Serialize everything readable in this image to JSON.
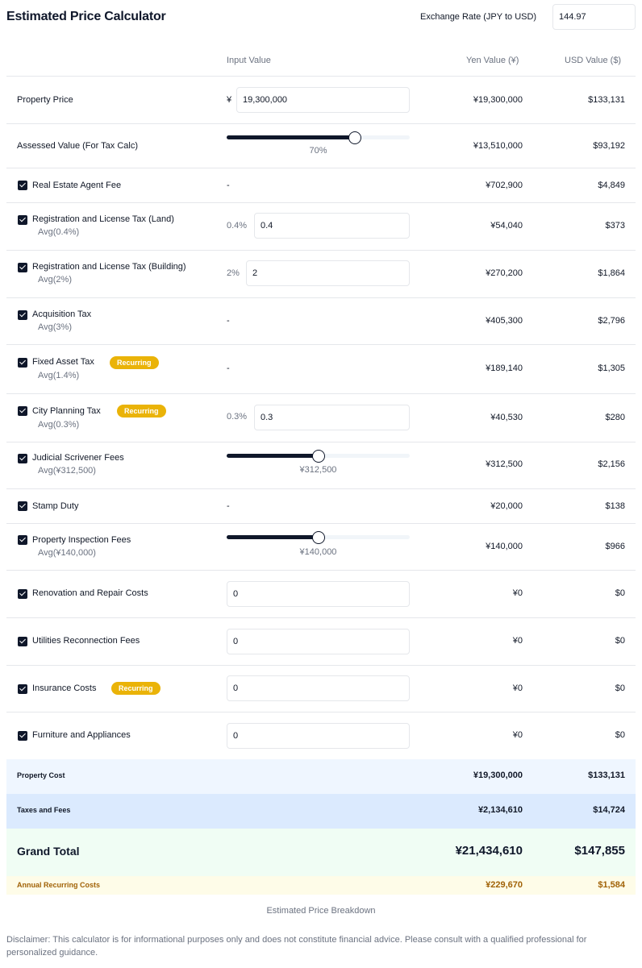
{
  "header": {
    "title": "Estimated Price Calculator",
    "exchange_rate_label": "Exchange Rate (JPY to USD)",
    "exchange_rate_value": "144.97"
  },
  "columns": {
    "input": "Input Value",
    "yen": "Yen Value (¥)",
    "usd": "USD Value ($)"
  },
  "rows": {
    "property_price": {
      "label": "Property Price",
      "prefix": "¥",
      "value": "19,300,000",
      "yen": "¥19,300,000",
      "usd": "$133,131"
    },
    "assessed_value": {
      "label": "Assessed Value (For Tax Calc)",
      "slider_percent": 70,
      "slider_label": "70%",
      "yen": "¥13,510,000",
      "usd": "$93,192"
    },
    "agent_fee": {
      "label": "Real Estate Agent Fee",
      "input": "-",
      "yen": "¥702,900",
      "usd": "$4,849",
      "checked": true
    },
    "reg_tax_land": {
      "label": "Registration and License Tax (Land)",
      "sub": "Avg(0.4%)",
      "prefix": "0.4%",
      "value": "0.4",
      "yen": "¥54,040",
      "usd": "$373",
      "checked": true
    },
    "reg_tax_building": {
      "label": "Registration and License Tax (Building)",
      "sub": "Avg(2%)",
      "prefix": "2%",
      "value": "2",
      "yen": "¥270,200",
      "usd": "$1,864",
      "checked": true
    },
    "acquisition_tax": {
      "label": "Acquisition Tax",
      "sub": "Avg(3%)",
      "input": "-",
      "yen": "¥405,300",
      "usd": "$2,796",
      "checked": true
    },
    "fixed_asset_tax": {
      "label": "Fixed Asset Tax",
      "badge": "Recurring",
      "sub": "Avg(1.4%)",
      "input": "-",
      "yen": "¥189,140",
      "usd": "$1,305",
      "checked": true
    },
    "city_planning_tax": {
      "label": "City Planning Tax",
      "badge": "Recurring",
      "sub": "Avg(0.3%)",
      "prefix": "0.3%",
      "value": "0.3",
      "yen": "¥40,530",
      "usd": "$280",
      "checked": true
    },
    "scrivener_fees": {
      "label": "Judicial Scrivener Fees",
      "sub": "Avg(¥312,500)",
      "slider_percent": 50,
      "slider_label": "¥312,500",
      "yen": "¥312,500",
      "usd": "$2,156",
      "checked": true
    },
    "stamp_duty": {
      "label": "Stamp Duty",
      "input": "-",
      "yen": "¥20,000",
      "usd": "$138",
      "checked": true
    },
    "inspection_fees": {
      "label": "Property Inspection Fees",
      "sub": "Avg(¥140,000)",
      "slider_percent": 50,
      "slider_label": "¥140,000",
      "yen": "¥140,000",
      "usd": "$966",
      "checked": true
    },
    "renovation": {
      "label": "Renovation and Repair Costs",
      "value": "0",
      "yen": "¥0",
      "usd": "$0",
      "checked": true
    },
    "utilities": {
      "label": "Utilities Reconnection Fees",
      "value": "0",
      "yen": "¥0",
      "usd": "$0",
      "checked": true
    },
    "insurance": {
      "label": "Insurance Costs",
      "badge": "Recurring",
      "value": "0",
      "yen": "¥0",
      "usd": "$0",
      "checked": true
    },
    "furniture": {
      "label": "Furniture and Appliances",
      "value": "0",
      "yen": "¥0",
      "usd": "$0",
      "checked": true
    }
  },
  "summary": {
    "property_cost": {
      "label": "Property Cost",
      "yen": "¥19,300,000",
      "usd": "$133,131"
    },
    "taxes_fees": {
      "label": "Taxes and Fees",
      "yen": "¥2,134,610",
      "usd": "$14,724"
    },
    "grand_total": {
      "label": "Grand Total",
      "yen": "¥21,434,610",
      "usd": "$147,855"
    },
    "recurring": {
      "label": "Annual Recurring Costs",
      "yen": "¥229,670",
      "usd": "$1,584"
    }
  },
  "breakdown_label": "Estimated Price Breakdown",
  "disclaimer": "Disclaimer: This calculator is for informational purposes only and does not constitute financial advice. Please consult with a qualified professional for personalized guidance.",
  "colors": {
    "accent": "#0f172a",
    "badge": "#eab308",
    "property_cost_bg": "#eff6ff",
    "taxes_bg": "#dbeafe",
    "grand_total_bg": "#f0fdf4",
    "recurring_bg": "#fefce8",
    "recurring_text": "#a16207"
  }
}
